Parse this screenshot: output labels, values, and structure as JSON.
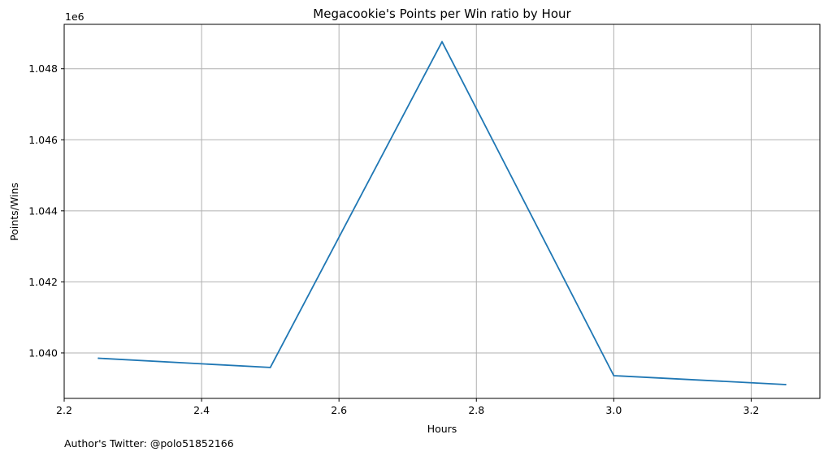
{
  "chart_data": {
    "type": "line",
    "title": "Megacookie's Points per Win ratio by Hour",
    "xlabel": "Hours",
    "ylabel": "Points/Wins",
    "y_offset_label": "1e6",
    "xlim": [
      2.2,
      3.3
    ],
    "ylim": [
      1.03872,
      1.04925
    ],
    "x_ticks": [
      2.2,
      2.4,
      2.6,
      2.8,
      3.0,
      3.2
    ],
    "x_tick_labels": [
      "2.2",
      "2.4",
      "2.6",
      "2.8",
      "3.0",
      "3.2"
    ],
    "y_ticks": [
      1.04,
      1.042,
      1.044,
      1.046,
      1.048
    ],
    "y_tick_labels": [
      "1.040",
      "1.042",
      "1.044",
      "1.046",
      "1.048"
    ],
    "grid": true,
    "series": [
      {
        "x": [
          2.25,
          2.5,
          2.75,
          3.0,
          3.25
        ],
        "y": [
          1.03985,
          1.03959,
          1.04876,
          1.03936,
          1.03911
        ],
        "color": "#1f77b4"
      }
    ]
  },
  "footer": {
    "note": "Author's Twitter: @polo51852166"
  }
}
